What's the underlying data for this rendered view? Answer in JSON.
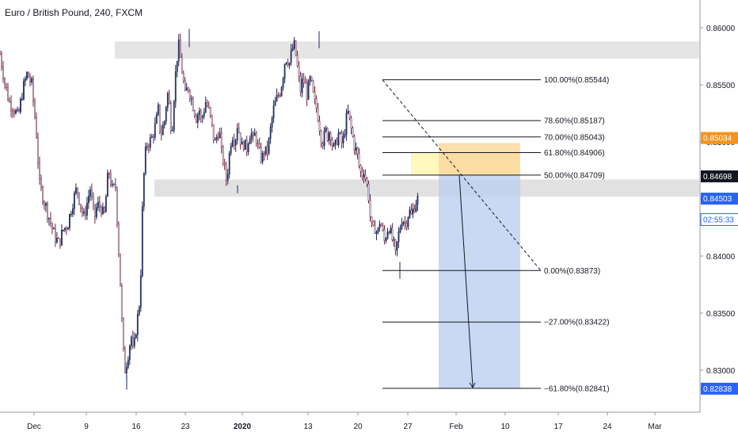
{
  "header": {
    "title": "Euro / British Pound, 240, FXCM"
  },
  "chart_data": {
    "type": "candlestick",
    "y_axis": {
      "ticks": [
        "0.86000",
        "0.85500",
        "0.85000",
        "0.84500",
        "0.84000",
        "0.83500",
        "0.83000"
      ],
      "tick_values": [
        0.86,
        0.855,
        0.85,
        0.845,
        0.84,
        0.835,
        0.83
      ],
      "range": [
        0.8272,
        0.8632
      ],
      "position": "right"
    },
    "x_axis": {
      "labels": [
        "Dec",
        "9",
        "16",
        "23",
        "2020",
        "13",
        "20",
        "27",
        "Feb",
        "10",
        "17",
        "24",
        "Mar"
      ],
      "bold": [
        "2020"
      ]
    },
    "price_labels": [
      {
        "text": "0.85034",
        "value": 0.85034,
        "color": "#f7931a"
      },
      {
        "text": "0.84698",
        "value": 0.84698,
        "color": "#131722"
      },
      {
        "text": "0.84503",
        "value": 0.84503,
        "color": "#2962ff"
      },
      {
        "text": "02:55:33",
        "value": 0.8432,
        "color": "#2962ff",
        "style": "countdown"
      },
      {
        "text": "0.82838",
        "value": 0.82838,
        "color": "#2962ff"
      }
    ],
    "fibonacci": {
      "levels": [
        {
          "label": "100.00%(0.85544)",
          "value": 0.85544
        },
        {
          "label": "78.60%(0.85187)",
          "value": 0.85187
        },
        {
          "label": "70.00%(0.85043)",
          "value": 0.85043
        },
        {
          "label": "61.80%(0.84906)",
          "value": 0.84906
        },
        {
          "label": "50.00%(0.84709)",
          "value": 0.84709
        },
        {
          "label": "0.00%(0.83873)",
          "value": 0.83873
        },
        {
          "label": "−27.00%(0.83422)",
          "value": 0.83422
        },
        {
          "label": "−61.80%(0.82841)",
          "value": 0.82841
        }
      ]
    },
    "zones": [
      {
        "name": "upper-resistance-zone",
        "from": 0.8573,
        "to": 0.8588,
        "color": "#e0e0e0"
      },
      {
        "name": "middle-support-zone",
        "from": 0.8452,
        "to": 0.8467,
        "color": "#dcdcdc"
      },
      {
        "name": "entry-zone",
        "from": 0.84709,
        "to": 0.84906,
        "color": "#fff7b0"
      },
      {
        "name": "stop-zone",
        "from": 0.84709,
        "to": 0.8499,
        "color": "#fcd9a0"
      },
      {
        "name": "target-zone",
        "from": 0.82841,
        "to": 0.84709,
        "color": "#bcd0f0"
      }
    ],
    "price_path": [
      {
        "t": 0,
        "p": 0.8577
      },
      {
        "t": 4,
        "p": 0.8553
      },
      {
        "t": 8,
        "p": 0.8535
      },
      {
        "t": 12,
        "p": 0.853
      },
      {
        "t": 16,
        "p": 0.8521
      },
      {
        "t": 20,
        "p": 0.8545
      },
      {
        "t": 24,
        "p": 0.856
      },
      {
        "t": 28,
        "p": 0.855
      },
      {
        "t": 32,
        "p": 0.851
      },
      {
        "t": 35,
        "p": 0.8462
      },
      {
        "t": 40,
        "p": 0.8445
      },
      {
        "t": 44,
        "p": 0.8432
      },
      {
        "t": 48,
        "p": 0.8418
      },
      {
        "t": 52,
        "p": 0.8411
      },
      {
        "t": 56,
        "p": 0.8423
      },
      {
        "t": 60,
        "p": 0.8428
      },
      {
        "t": 64,
        "p": 0.8446
      },
      {
        "t": 68,
        "p": 0.846
      },
      {
        "t": 71,
        "p": 0.8446
      },
      {
        "t": 74,
        "p": 0.8433
      },
      {
        "t": 78,
        "p": 0.8451
      },
      {
        "t": 80,
        "p": 0.846
      },
      {
        "t": 82,
        "p": 0.8441
      },
      {
        "t": 84,
        "p": 0.8435
      },
      {
        "t": 86,
        "p": 0.8445
      },
      {
        "t": 90,
        "p": 0.8442
      },
      {
        "t": 92,
        "p": 0.8432
      },
      {
        "t": 96,
        "p": 0.8476
      },
      {
        "t": 100,
        "p": 0.8455
      },
      {
        "t": 102,
        "p": 0.8465
      },
      {
        "t": 104,
        "p": 0.8425
      },
      {
        "t": 106,
        "p": 0.8385
      },
      {
        "t": 108,
        "p": 0.8338
      },
      {
        "t": 110,
        "p": 0.8298
      },
      {
        "t": 112,
        "p": 0.8307
      },
      {
        "t": 114,
        "p": 0.8318
      },
      {
        "t": 116,
        "p": 0.8331
      },
      {
        "t": 118,
        "p": 0.8313
      },
      {
        "t": 120,
        "p": 0.8333
      },
      {
        "t": 122,
        "p": 0.8348
      },
      {
        "t": 124,
        "p": 0.8364
      },
      {
        "t": 126,
        "p": 0.844
      },
      {
        "t": 128,
        "p": 0.8485
      },
      {
        "t": 130,
        "p": 0.8498
      },
      {
        "t": 134,
        "p": 0.8502
      },
      {
        "t": 138,
        "p": 0.8516
      },
      {
        "t": 140,
        "p": 0.8528
      },
      {
        "t": 142,
        "p": 0.8505
      },
      {
        "t": 146,
        "p": 0.852
      },
      {
        "t": 148,
        "p": 0.8545
      },
      {
        "t": 150,
        "p": 0.853
      },
      {
        "t": 152,
        "p": 0.8506
      },
      {
        "t": 154,
        "p": 0.854
      },
      {
        "t": 156,
        "p": 0.8568
      },
      {
        "t": 158,
        "p": 0.8585
      },
      {
        "t": 160,
        "p": 0.857
      },
      {
        "t": 162,
        "p": 0.8555
      },
      {
        "t": 164,
        "p": 0.8538
      },
      {
        "t": 166,
        "p": 0.855
      },
      {
        "t": 168,
        "p": 0.8543
      },
      {
        "t": 170,
        "p": 0.8535
      },
      {
        "t": 172,
        "p": 0.8528
      },
      {
        "t": 174,
        "p": 0.852
      },
      {
        "t": 176,
        "p": 0.853
      },
      {
        "t": 178,
        "p": 0.8518
      },
      {
        "t": 180,
        "p": 0.8526
      },
      {
        "t": 182,
        "p": 0.8535
      },
      {
        "t": 184,
        "p": 0.853
      },
      {
        "t": 186,
        "p": 0.8522
      },
      {
        "t": 188,
        "p": 0.851
      },
      {
        "t": 190,
        "p": 0.8498
      },
      {
        "t": 192,
        "p": 0.8505
      },
      {
        "t": 194,
        "p": 0.8512
      },
      {
        "t": 196,
        "p": 0.849
      },
      {
        "t": 198,
        "p": 0.8482
      },
      {
        "t": 200,
        "p": 0.8466
      },
      {
        "t": 202,
        "p": 0.8478
      },
      {
        "t": 204,
        "p": 0.85
      },
      {
        "t": 206,
        "p": 0.8507
      },
      {
        "t": 208,
        "p": 0.85
      },
      {
        "t": 210,
        "p": 0.8515
      },
      {
        "t": 212,
        "p": 0.8507
      },
      {
        "t": 214,
        "p": 0.8495
      },
      {
        "t": 216,
        "p": 0.85
      },
      {
        "t": 218,
        "p": 0.8492
      },
      {
        "t": 220,
        "p": 0.8504
      },
      {
        "t": 222,
        "p": 0.851
      },
      {
        "t": 224,
        "p": 0.85
      },
      {
        "t": 226,
        "p": 0.8508
      },
      {
        "t": 228,
        "p": 0.8496
      },
      {
        "t": 230,
        "p": 0.8488
      },
      {
        "t": 232,
        "p": 0.8485
      },
      {
        "t": 234,
        "p": 0.8493
      },
      {
        "t": 236,
        "p": 0.8489
      },
      {
        "t": 238,
        "p": 0.85
      },
      {
        "t": 240,
        "p": 0.8515
      },
      {
        "t": 242,
        "p": 0.8528
      },
      {
        "t": 244,
        "p": 0.8535
      },
      {
        "t": 246,
        "p": 0.854
      },
      {
        "t": 248,
        "p": 0.8545
      },
      {
        "t": 250,
        "p": 0.8555
      },
      {
        "t": 252,
        "p": 0.857
      },
      {
        "t": 254,
        "p": 0.8575
      },
      {
        "t": 256,
        "p": 0.8568
      },
      {
        "t": 258,
        "p": 0.8578
      },
      {
        "t": 260,
        "p": 0.8586
      },
      {
        "t": 262,
        "p": 0.8575
      },
      {
        "t": 264,
        "p": 0.8558
      },
      {
        "t": 266,
        "p": 0.8545
      },
      {
        "t": 268,
        "p": 0.8555
      },
      {
        "t": 270,
        "p": 0.855
      },
      {
        "t": 272,
        "p": 0.854
      },
      {
        "t": 274,
        "p": 0.8555
      },
      {
        "t": 276,
        "p": 0.8548
      },
      {
        "t": 278,
        "p": 0.8535
      },
      {
        "t": 280,
        "p": 0.853
      },
      {
        "t": 282,
        "p": 0.852
      },
      {
        "t": 284,
        "p": 0.8505
      },
      {
        "t": 286,
        "p": 0.85
      },
      {
        "t": 288,
        "p": 0.851
      },
      {
        "t": 290,
        "p": 0.8505
      },
      {
        "t": 292,
        "p": 0.8512
      },
      {
        "t": 294,
        "p": 0.8498
      },
      {
        "t": 296,
        "p": 0.8492
      },
      {
        "t": 298,
        "p": 0.8502
      },
      {
        "t": 300,
        "p": 0.8508
      },
      {
        "t": 302,
        "p": 0.8498
      },
      {
        "t": 304,
        "p": 0.8502
      },
      {
        "t": 306,
        "p": 0.8518
      },
      {
        "t": 308,
        "p": 0.8525
      },
      {
        "t": 310,
        "p": 0.8515
      },
      {
        "t": 312,
        "p": 0.8505
      },
      {
        "t": 314,
        "p": 0.8495
      },
      {
        "t": 316,
        "p": 0.849
      },
      {
        "t": 318,
        "p": 0.8478
      },
      {
        "t": 320,
        "p": 0.847
      },
      {
        "t": 322,
        "p": 0.8476
      },
      {
        "t": 324,
        "p": 0.8466
      },
      {
        "t": 326,
        "p": 0.8455
      },
      {
        "t": 328,
        "p": 0.843
      },
      {
        "t": 330,
        "p": 0.842
      },
      {
        "t": 332,
        "p": 0.8426
      },
      {
        "t": 334,
        "p": 0.8418
      },
      {
        "t": 336,
        "p": 0.843
      },
      {
        "t": 338,
        "p": 0.8425
      },
      {
        "t": 340,
        "p": 0.8412
      },
      {
        "t": 342,
        "p": 0.842
      },
      {
        "t": 344,
        "p": 0.8428
      },
      {
        "t": 346,
        "p": 0.8418
      },
      {
        "t": 348,
        "p": 0.8412
      },
      {
        "t": 350,
        "p": 0.84
      },
      {
        "t": 352,
        "p": 0.8415
      },
      {
        "t": 354,
        "p": 0.8425
      },
      {
        "t": 356,
        "p": 0.8435
      },
      {
        "t": 358,
        "p": 0.8428
      },
      {
        "t": 360,
        "p": 0.8432
      },
      {
        "t": 362,
        "p": 0.844
      },
      {
        "t": 364,
        "p": 0.8435
      },
      {
        "t": 366,
        "p": 0.8442
      },
      {
        "t": 368,
        "p": 0.8448
      },
      {
        "t": 370,
        "p": 0.845
      }
    ]
  }
}
